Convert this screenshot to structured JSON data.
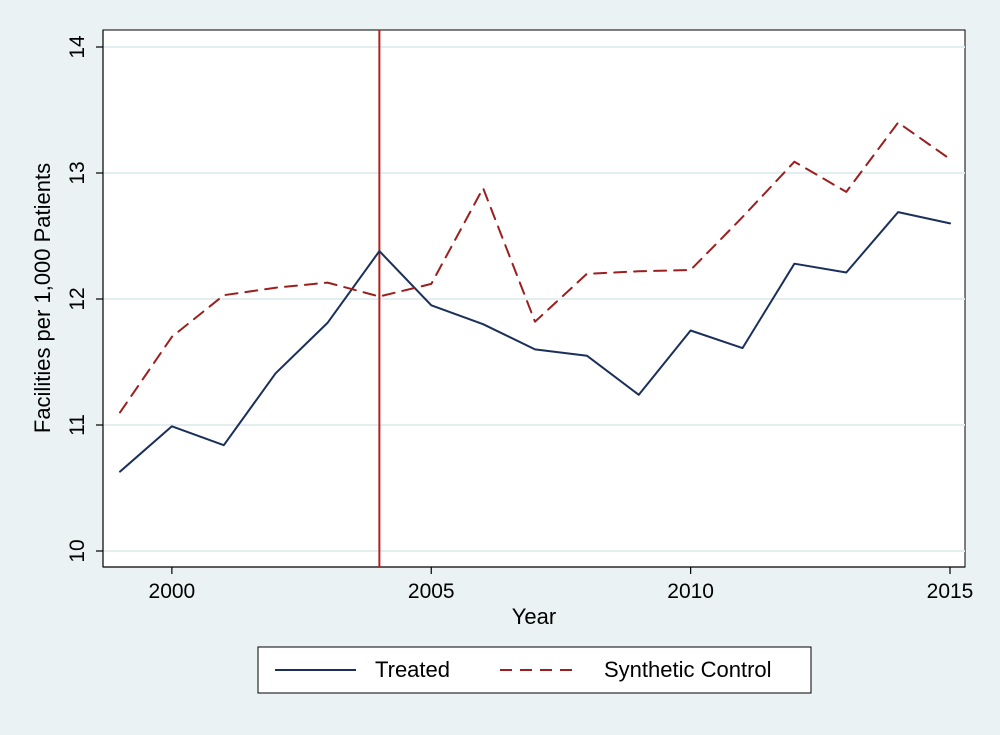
{
  "chart_data": {
    "type": "line",
    "xlabel": "Year",
    "ylabel": "Facilities per 1,000 Patients",
    "xlim": [
      1999,
      2015
    ],
    "ylim": [
      10,
      14
    ],
    "x_ticks": [
      "2000",
      "2005",
      "2010",
      "2015"
    ],
    "y_ticks": [
      "10",
      "11",
      "12",
      "13",
      "14"
    ],
    "x": [
      1999,
      2000,
      2001,
      2002,
      2003,
      2004,
      2005,
      2006,
      2007,
      2008,
      2009,
      2010,
      2011,
      2012,
      2013,
      2014,
      2015
    ],
    "series": [
      {
        "name": "Treated",
        "color": "#1a2f5a",
        "style": "solid",
        "values": [
          10.63,
          10.99,
          10.84,
          11.41,
          11.81,
          12.38,
          11.95,
          11.8,
          11.6,
          11.55,
          11.24,
          11.75,
          11.61,
          12.28,
          12.21,
          12.69,
          12.6
        ]
      },
      {
        "name": "Synthetic Control",
        "color": "#9b1f1f",
        "style": "dashed",
        "values": [
          11.1,
          11.7,
          12.03,
          12.09,
          12.13,
          12.02,
          12.12,
          12.88,
          11.82,
          12.2,
          12.22,
          12.23,
          12.65,
          13.09,
          12.85,
          13.4,
          13.11
        ]
      }
    ],
    "reference_line": {
      "x": 2004,
      "color": "#b3201f"
    },
    "grid": true,
    "legend_position": "bottom"
  }
}
